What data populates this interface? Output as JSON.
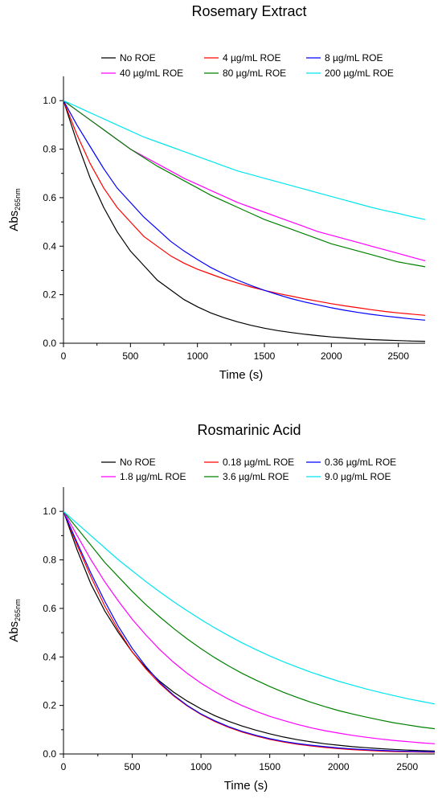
{
  "chart_data": [
    {
      "type": "line",
      "title": "Rosemary Extract",
      "xlabel": "Time (s)",
      "ylabel_main": "Abs",
      "ylabel_sub": "265nm",
      "xlim": [
        0,
        2700
      ],
      "ylim": [
        0,
        1.1
      ],
      "xticks": [
        0,
        500,
        1000,
        1500,
        2000,
        2500
      ],
      "yticks": [
        0.0,
        0.2,
        0.4,
        0.6,
        0.8,
        1.0
      ],
      "ytick_labels": [
        "0.0",
        "0.2",
        "0.4",
        "0.6",
        "0.8",
        "1.0"
      ],
      "grid": false,
      "legend_position": "top",
      "x": [
        0,
        100,
        200,
        300,
        400,
        500,
        600,
        700,
        800,
        900,
        1000,
        1100,
        1200,
        1300,
        1400,
        1500,
        1600,
        1700,
        1800,
        1900,
        2000,
        2100,
        2200,
        2300,
        2400,
        2500,
        2600,
        2700
      ],
      "series": [
        {
          "name": "No ROE",
          "color": "#000000",
          "values": [
            1.0,
            0.83,
            0.68,
            0.56,
            0.46,
            0.38,
            0.32,
            0.26,
            0.22,
            0.18,
            0.15,
            0.125,
            0.105,
            0.088,
            0.074,
            0.062,
            0.052,
            0.044,
            0.037,
            0.031,
            0.026,
            0.022,
            0.018,
            0.015,
            0.013,
            0.011,
            0.009,
            0.008
          ]
        },
        {
          "name": "4 µg/mL ROE",
          "color": "#ff0000",
          "values": [
            1.0,
            0.86,
            0.74,
            0.64,
            0.56,
            0.5,
            0.44,
            0.4,
            0.36,
            0.33,
            0.305,
            0.285,
            0.265,
            0.248,
            0.232,
            0.218,
            0.205,
            0.194,
            0.183,
            0.173,
            0.163,
            0.154,
            0.146,
            0.138,
            0.131,
            0.125,
            0.12,
            0.115
          ]
        },
        {
          "name": "8 µg/mL ROE",
          "color": "#0000ff",
          "values": [
            1.0,
            0.9,
            0.81,
            0.72,
            0.64,
            0.58,
            0.52,
            0.47,
            0.42,
            0.38,
            0.345,
            0.312,
            0.285,
            0.26,
            0.238,
            0.218,
            0.2,
            0.184,
            0.17,
            0.158,
            0.146,
            0.136,
            0.127,
            0.119,
            0.112,
            0.106,
            0.1,
            0.095
          ]
        },
        {
          "name": "40 µg/mL ROE",
          "color": "#ff00ff",
          "values": [
            1.0,
            0.96,
            0.92,
            0.88,
            0.84,
            0.8,
            0.77,
            0.74,
            0.71,
            0.68,
            0.655,
            0.63,
            0.605,
            0.58,
            0.56,
            0.54,
            0.52,
            0.5,
            0.48,
            0.46,
            0.445,
            0.43,
            0.415,
            0.4,
            0.385,
            0.37,
            0.355,
            0.34
          ]
        },
        {
          "name": "80 µg/mL ROE",
          "color": "#008000",
          "values": [
            1.0,
            0.96,
            0.92,
            0.88,
            0.84,
            0.8,
            0.765,
            0.73,
            0.7,
            0.67,
            0.64,
            0.61,
            0.585,
            0.56,
            0.535,
            0.51,
            0.49,
            0.47,
            0.45,
            0.43,
            0.41,
            0.395,
            0.38,
            0.365,
            0.35,
            0.335,
            0.325,
            0.315
          ]
        },
        {
          "name": "200 µg/mL ROE",
          "color": "#00e5ee",
          "values": [
            1.0,
            0.975,
            0.95,
            0.925,
            0.9,
            0.875,
            0.85,
            0.83,
            0.81,
            0.79,
            0.77,
            0.75,
            0.73,
            0.71,
            0.695,
            0.68,
            0.665,
            0.65,
            0.635,
            0.62,
            0.605,
            0.59,
            0.575,
            0.56,
            0.547,
            0.535,
            0.522,
            0.51
          ]
        }
      ],
      "legend": [
        {
          "label": "No ROE",
          "color": "#000000"
        },
        {
          "label": "4 µg/mL ROE",
          "color": "#ff0000"
        },
        {
          "label": "8 µg/mL ROE",
          "color": "#0000ff"
        },
        {
          "label": "40 µg/mL ROE",
          "color": "#ff00ff"
        },
        {
          "label": "80 µg/mL ROE",
          "color": "#008000"
        },
        {
          "label": "200 µg/mL ROE",
          "color": "#00e5ee"
        }
      ]
    },
    {
      "type": "line",
      "title": "Rosmarinic Acid",
      "xlabel": "Time (s)",
      "ylabel_main": "Abs",
      "ylabel_sub": "265nm",
      "xlim": [
        0,
        2700
      ],
      "ylim": [
        0,
        1.1
      ],
      "xticks": [
        0,
        500,
        1000,
        1500,
        2000,
        2500
      ],
      "yticks": [
        0.0,
        0.2,
        0.4,
        0.6,
        0.8,
        1.0
      ],
      "ytick_labels": [
        "0.0",
        "0.2",
        "0.4",
        "0.6",
        "0.8",
        "1.0"
      ],
      "grid": false,
      "legend_position": "top",
      "x": [
        0,
        100,
        200,
        300,
        400,
        500,
        600,
        700,
        800,
        900,
        1000,
        1100,
        1200,
        1300,
        1400,
        1500,
        1600,
        1700,
        1800,
        1900,
        2000,
        2100,
        2200,
        2300,
        2400,
        2500,
        2600,
        2700
      ],
      "series": [
        {
          "name": "No ROE",
          "color": "#000000",
          "values": [
            1.0,
            0.84,
            0.7,
            0.59,
            0.5,
            0.42,
            0.355,
            0.3,
            0.255,
            0.218,
            0.186,
            0.158,
            0.135,
            0.115,
            0.098,
            0.083,
            0.07,
            0.059,
            0.05,
            0.042,
            0.036,
            0.03,
            0.026,
            0.022,
            0.019,
            0.016,
            0.014,
            0.012
          ]
        },
        {
          "name": "0.18 µg/mL ROE",
          "color": "#ff0000",
          "values": [
            1.0,
            0.86,
            0.73,
            0.61,
            0.51,
            0.42,
            0.35,
            0.29,
            0.24,
            0.198,
            0.163,
            0.134,
            0.11,
            0.09,
            0.074,
            0.06,
            0.049,
            0.04,
            0.033,
            0.027,
            0.022,
            0.018,
            0.015,
            0.012,
            0.01,
            0.009,
            0.008,
            0.007
          ]
        },
        {
          "name": "0.36 µg/mL ROE",
          "color": "#0000ff",
          "values": [
            1.0,
            0.87,
            0.745,
            0.63,
            0.525,
            0.435,
            0.36,
            0.295,
            0.243,
            0.2,
            0.165,
            0.137,
            0.113,
            0.093,
            0.077,
            0.063,
            0.052,
            0.043,
            0.036,
            0.03,
            0.025,
            0.021,
            0.018,
            0.015,
            0.013,
            0.011,
            0.01,
            0.009
          ]
        },
        {
          "name": "1.8 µg/mL ROE",
          "color": "#ff00ff",
          "values": [
            1.0,
            0.9,
            0.8,
            0.71,
            0.63,
            0.555,
            0.49,
            0.43,
            0.378,
            0.332,
            0.292,
            0.257,
            0.226,
            0.199,
            0.176,
            0.155,
            0.138,
            0.122,
            0.108,
            0.096,
            0.086,
            0.077,
            0.069,
            0.062,
            0.056,
            0.051,
            0.046,
            0.042
          ]
        },
        {
          "name": "3.6  µg/mL ROE",
          "color": "#008000",
          "values": [
            1.0,
            0.93,
            0.86,
            0.79,
            0.73,
            0.67,
            0.615,
            0.565,
            0.518,
            0.474,
            0.434,
            0.397,
            0.363,
            0.332,
            0.304,
            0.278,
            0.254,
            0.233,
            0.213,
            0.195,
            0.179,
            0.165,
            0.152,
            0.14,
            0.129,
            0.12,
            0.111,
            0.104
          ]
        },
        {
          "name": "9.0  µg/mL ROE",
          "color": "#00e5ee",
          "values": [
            1.0,
            0.95,
            0.9,
            0.85,
            0.8,
            0.755,
            0.71,
            0.668,
            0.628,
            0.59,
            0.554,
            0.52,
            0.488,
            0.458,
            0.43,
            0.404,
            0.38,
            0.358,
            0.337,
            0.318,
            0.3,
            0.284,
            0.268,
            0.254,
            0.241,
            0.228,
            0.217,
            0.206
          ]
        }
      ],
      "legend": [
        {
          "label": "No ROE",
          "color": "#000000"
        },
        {
          "label": "0.18 µg/mL ROE",
          "color": "#ff0000"
        },
        {
          "label": "0.36 µg/mL ROE",
          "color": "#0000ff"
        },
        {
          "label": "1.8 µg/mL ROE",
          "color": "#ff00ff"
        },
        {
          "label": "3.6  µg/mL ROE",
          "color": "#008000"
        },
        {
          "label": "9.0  µg/mL ROE",
          "color": "#00e5ee"
        }
      ]
    }
  ]
}
